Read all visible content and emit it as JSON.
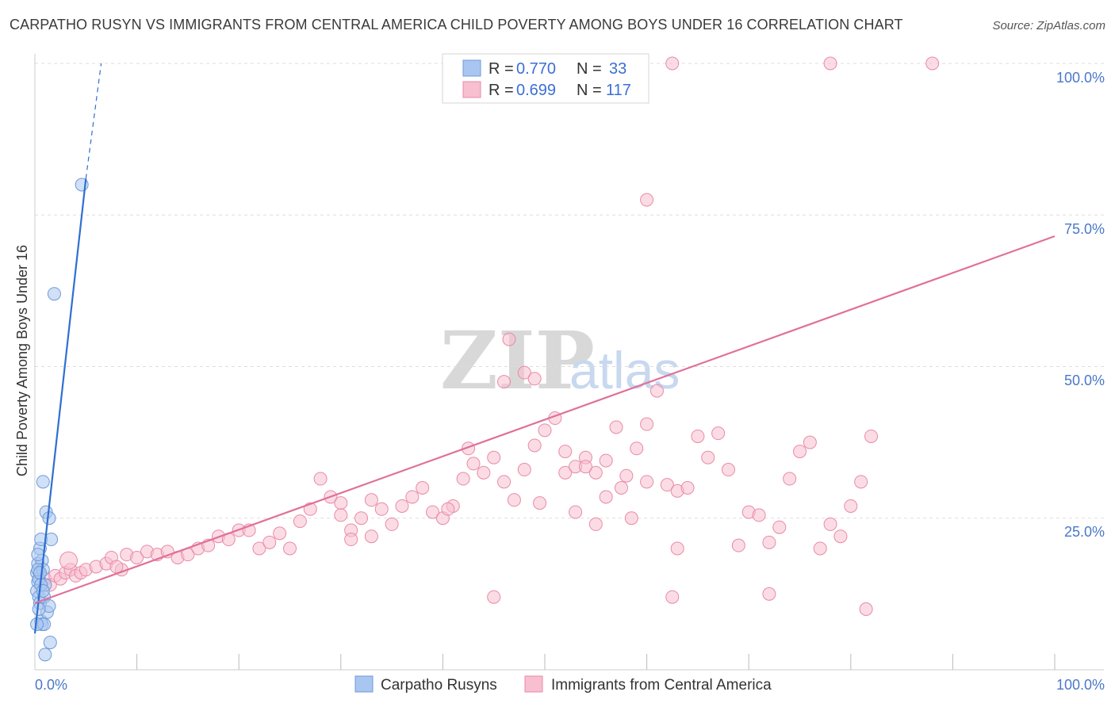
{
  "title": "CARPATHO RUSYN VS IMMIGRANTS FROM CENTRAL AMERICA CHILD POVERTY AMONG BOYS UNDER 16 CORRELATION CHART",
  "source": "Source: ZipAtlas.com",
  "watermark": {
    "zip": "ZIP",
    "atlas": "atlas"
  },
  "colors": {
    "blue_fill": "#a9c6f0",
    "blue_stroke": "#6f9ad8",
    "blue_line": "#2f6fd0",
    "pink_fill": "#f7bfd0",
    "pink_stroke": "#e88aa8",
    "pink_line": "#e0709a",
    "grid": "#dddddd",
    "tick_text": "#4a78c8"
  },
  "legend": {
    "entries": [
      {
        "r_label": "R =",
        "r_value": "0.770",
        "n_label": "N =",
        "n_value": "33",
        "color": "blue"
      },
      {
        "r_label": "R =",
        "r_value": "0.699",
        "n_label": "N =",
        "n_value": "117",
        "color": "pink"
      }
    ]
  },
  "bottom_legend": [
    {
      "label": "Carpatho Rusyns",
      "color": "blue"
    },
    {
      "label": "Immigrants from Central America",
      "color": "pink"
    }
  ],
  "chart_data": {
    "type": "scatter",
    "title": "CARPATHO RUSYN VS IMMIGRANTS FROM CENTRAL AMERICA CHILD POVERTY AMONG BOYS UNDER 16 CORRELATION CHART",
    "xlabel": "",
    "ylabel": "Child Poverty Among Boys Under 16",
    "xlim": [
      0,
      100
    ],
    "ylim": [
      0,
      100
    ],
    "x_tick_labels": [
      "0.0%",
      "100.0%"
    ],
    "y_tick_labels": [
      "25.0%",
      "50.0%",
      "75.0%",
      "100.0%"
    ],
    "y_ticks": [
      25,
      50,
      75,
      100
    ],
    "grid": true,
    "legend_position": "top-center",
    "series": [
      {
        "name": "Carpatho Rusyns",
        "color": "blue",
        "R": 0.77,
        "N": 33,
        "trend": {
          "x0": 0.0,
          "y0": 6.0,
          "x1": 5.0,
          "y1": 81.0,
          "dashed_to": {
            "x": 6.5,
            "y": 100.0
          }
        },
        "points": [
          [
            0.2,
            16.0
          ],
          [
            0.3,
            14.5
          ],
          [
            0.2,
            13.0
          ],
          [
            0.4,
            12.0
          ],
          [
            0.3,
            17.5
          ],
          [
            0.5,
            20.0
          ],
          [
            0.6,
            21.5
          ],
          [
            0.4,
            15.0
          ],
          [
            0.7,
            18.0
          ],
          [
            0.8,
            16.5
          ],
          [
            0.5,
            11.0
          ],
          [
            0.9,
            12.0
          ],
          [
            1.0,
            14.0
          ],
          [
            0.6,
            8.0
          ],
          [
            0.7,
            7.5
          ],
          [
            0.9,
            7.5
          ],
          [
            1.2,
            9.5
          ],
          [
            1.4,
            10.5
          ],
          [
            1.1,
            26.0
          ],
          [
            1.4,
            25.0
          ],
          [
            1.6,
            21.5
          ],
          [
            0.8,
            31.0
          ],
          [
            1.5,
            4.5
          ],
          [
            1.0,
            2.5
          ],
          [
            0.3,
            19.0
          ],
          [
            0.4,
            10.0
          ],
          [
            0.2,
            7.5
          ],
          [
            0.6,
            14.0
          ],
          [
            0.8,
            13.0
          ],
          [
            0.3,
            16.5
          ],
          [
            1.9,
            62.0
          ],
          [
            4.6,
            80.0
          ],
          [
            0.5,
            16.0
          ]
        ]
      },
      {
        "name": "Immigrants from Central America",
        "color": "pink",
        "R": 0.699,
        "N": 117,
        "trend": {
          "x0": 0.0,
          "y0": 11.0,
          "x1": 100.0,
          "y1": 71.5
        },
        "points": [
          [
            0.5,
            16.0
          ],
          [
            1.0,
            15.0
          ],
          [
            1.5,
            14.0
          ],
          [
            2.0,
            15.5
          ],
          [
            2.5,
            15.0
          ],
          [
            3.0,
            16.0
          ],
          [
            3.5,
            16.5
          ],
          [
            4.0,
            15.5
          ],
          [
            4.5,
            16.0
          ],
          [
            5.0,
            16.5
          ],
          [
            3.3,
            18.0
          ],
          [
            6.0,
            17.0
          ],
          [
            7.0,
            17.5
          ],
          [
            7.5,
            18.5
          ],
          [
            8.5,
            16.5
          ],
          [
            8.0,
            17.0
          ],
          [
            9.0,
            19.0
          ],
          [
            10.0,
            18.5
          ],
          [
            11.0,
            19.5
          ],
          [
            12.0,
            19.0
          ],
          [
            13.0,
            19.5
          ],
          [
            14.0,
            18.5
          ],
          [
            15.0,
            19.0
          ],
          [
            16.0,
            20.0
          ],
          [
            17.0,
            20.5
          ],
          [
            18.0,
            22.0
          ],
          [
            19.0,
            21.5
          ],
          [
            20.0,
            23.0
          ],
          [
            21.0,
            23.0
          ],
          [
            22.0,
            20.0
          ],
          [
            23.0,
            21.0
          ],
          [
            24.0,
            22.5
          ],
          [
            25.0,
            20.0
          ],
          [
            26.0,
            24.5
          ],
          [
            27.0,
            26.5
          ],
          [
            28.0,
            31.5
          ],
          [
            29.0,
            28.5
          ],
          [
            30.0,
            27.5
          ],
          [
            31.0,
            23.0
          ],
          [
            32.0,
            25.0
          ],
          [
            33.0,
            28.0
          ],
          [
            34.0,
            26.5
          ],
          [
            35.0,
            24.0
          ],
          [
            36.0,
            27.0
          ],
          [
            37.0,
            28.5
          ],
          [
            38.0,
            30.0
          ],
          [
            39.0,
            26.0
          ],
          [
            40.0,
            25.0
          ],
          [
            41.0,
            27.0
          ],
          [
            42.0,
            31.5
          ],
          [
            43.0,
            34.0
          ],
          [
            44.0,
            32.5
          ],
          [
            45.0,
            35.0
          ],
          [
            46.0,
            31.0
          ],
          [
            47.0,
            28.0
          ],
          [
            48.0,
            33.0
          ],
          [
            49.0,
            37.0
          ],
          [
            50.0,
            39.5
          ],
          [
            51.0,
            41.5
          ],
          [
            52.0,
            32.5
          ],
          [
            53.0,
            33.5
          ],
          [
            54.0,
            35.0
          ],
          [
            55.0,
            32.5
          ],
          [
            56.0,
            34.5
          ],
          [
            57.0,
            40.0
          ],
          [
            58.0,
            32.0
          ],
          [
            59.0,
            36.5
          ],
          [
            60.0,
            40.5
          ],
          [
            61.0,
            46.0
          ],
          [
            62.0,
            30.5
          ],
          [
            63.0,
            29.5
          ],
          [
            64.0,
            30.0
          ],
          [
            65.0,
            38.5
          ],
          [
            66.0,
            35.0
          ],
          [
            67.0,
            39.0
          ],
          [
            68.0,
            33.0
          ],
          [
            69.0,
            20.5
          ],
          [
            70.0,
            26.0
          ],
          [
            71.0,
            25.5
          ],
          [
            72.0,
            21.0
          ],
          [
            73.0,
            23.5
          ],
          [
            74.0,
            31.5
          ],
          [
            75.0,
            36.0
          ],
          [
            76.0,
            37.5
          ],
          [
            77.0,
            20.0
          ],
          [
            78.0,
            24.0
          ],
          [
            79.0,
            22.0
          ],
          [
            80.0,
            27.0
          ],
          [
            81.0,
            31.0
          ],
          [
            82.0,
            38.5
          ],
          [
            62.5,
            12.0
          ],
          [
            81.5,
            10.0
          ],
          [
            46.0,
            47.5
          ],
          [
            48.0,
            49.0
          ],
          [
            49.0,
            48.0
          ],
          [
            46.5,
            54.5
          ],
          [
            60.0,
            77.5
          ],
          [
            62.5,
            100.0
          ],
          [
            78.0,
            100.0
          ],
          [
            88.0,
            100.0
          ],
          [
            63.0,
            20.0
          ],
          [
            55.0,
            24.0
          ],
          [
            30.0,
            25.5
          ],
          [
            33.0,
            22.0
          ],
          [
            31.0,
            21.5
          ],
          [
            45.0,
            12.0
          ],
          [
            72.0,
            12.5
          ],
          [
            52.0,
            36.0
          ],
          [
            54.0,
            33.5
          ],
          [
            49.5,
            27.5
          ],
          [
            40.5,
            26.5
          ],
          [
            42.5,
            36.5
          ],
          [
            56.0,
            28.5
          ],
          [
            57.5,
            30.0
          ],
          [
            53.0,
            26.0
          ],
          [
            60.0,
            31.0
          ],
          [
            58.5,
            25.0
          ]
        ]
      }
    ]
  }
}
